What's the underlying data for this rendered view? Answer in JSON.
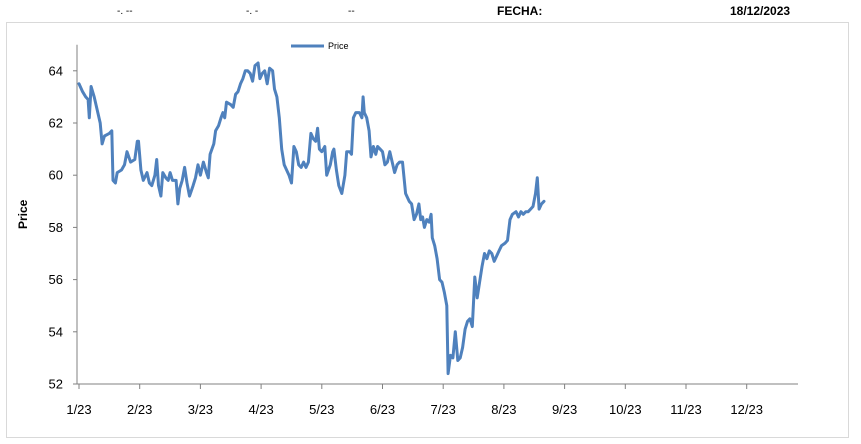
{
  "header": {
    "dash1": "-. --",
    "dash2": "-. -",
    "dash3": "--",
    "fecha_label": "FECHA:",
    "fecha_value": "18/12/2023"
  },
  "chart_data": {
    "type": "line",
    "ylabel": "Price",
    "ylim": [
      52,
      65
    ],
    "yticks": [
      52,
      54,
      56,
      58,
      60,
      62,
      64
    ],
    "xticks": [
      "1/23",
      "2/23",
      "3/23",
      "4/23",
      "5/23",
      "6/23",
      "7/23",
      "8/23",
      "9/23",
      "10/23",
      "11/23",
      "12/23"
    ],
    "legend": "top-center",
    "grid": false,
    "series_color": "#4f81bd",
    "series": [
      {
        "name": "Price",
        "points": [
          [
            0.0,
            63.5
          ],
          [
            0.06,
            63.2
          ],
          [
            0.11,
            63.0
          ],
          [
            0.15,
            62.9
          ],
          [
            0.17,
            62.2
          ],
          [
            0.2,
            63.4
          ],
          [
            0.25,
            63.0
          ],
          [
            0.3,
            62.5
          ],
          [
            0.35,
            62.0
          ],
          [
            0.38,
            61.2
          ],
          [
            0.42,
            61.5
          ],
          [
            0.5,
            61.6
          ],
          [
            0.54,
            61.7
          ],
          [
            0.56,
            59.8
          ],
          [
            0.6,
            59.7
          ],
          [
            0.63,
            60.1
          ],
          [
            0.7,
            60.2
          ],
          [
            0.75,
            60.4
          ],
          [
            0.79,
            60.9
          ],
          [
            0.85,
            60.5
          ],
          [
            0.92,
            60.6
          ],
          [
            0.96,
            61.3
          ],
          [
            0.98,
            61.3
          ],
          [
            1.02,
            60.2
          ],
          [
            1.06,
            59.8
          ],
          [
            1.12,
            60.1
          ],
          [
            1.16,
            59.7
          ],
          [
            1.2,
            59.6
          ],
          [
            1.25,
            60.0
          ],
          [
            1.28,
            60.6
          ],
          [
            1.31,
            59.6
          ],
          [
            1.35,
            59.2
          ],
          [
            1.38,
            60.1
          ],
          [
            1.43,
            59.9
          ],
          [
            1.47,
            59.8
          ],
          [
            1.5,
            60.1
          ],
          [
            1.54,
            59.8
          ],
          [
            1.6,
            59.8
          ],
          [
            1.63,
            58.9
          ],
          [
            1.66,
            59.5
          ],
          [
            1.7,
            59.8
          ],
          [
            1.74,
            60.3
          ],
          [
            1.78,
            59.7
          ],
          [
            1.82,
            59.2
          ],
          [
            1.88,
            59.6
          ],
          [
            1.92,
            59.9
          ],
          [
            1.96,
            60.4
          ],
          [
            2.0,
            60.0
          ],
          [
            2.05,
            60.5
          ],
          [
            2.1,
            60.1
          ],
          [
            2.13,
            59.9
          ],
          [
            2.16,
            60.8
          ],
          [
            2.22,
            61.2
          ],
          [
            2.25,
            61.7
          ],
          [
            2.3,
            61.9
          ],
          [
            2.34,
            62.2
          ],
          [
            2.37,
            62.4
          ],
          [
            2.4,
            62.2
          ],
          [
            2.43,
            62.8
          ],
          [
            2.5,
            62.7
          ],
          [
            2.54,
            62.6
          ],
          [
            2.58,
            63.1
          ],
          [
            2.62,
            63.2
          ],
          [
            2.66,
            63.5
          ],
          [
            2.7,
            63.7
          ],
          [
            2.74,
            64.0
          ],
          [
            2.78,
            64.0
          ],
          [
            2.82,
            63.9
          ],
          [
            2.86,
            63.6
          ],
          [
            2.9,
            64.2
          ],
          [
            2.95,
            64.3
          ],
          [
            2.98,
            63.7
          ],
          [
            3.02,
            63.9
          ],
          [
            3.06,
            64.0
          ],
          [
            3.1,
            63.5
          ],
          [
            3.14,
            64.1
          ],
          [
            3.19,
            64.0
          ],
          [
            3.22,
            63.3
          ],
          [
            3.26,
            63.0
          ],
          [
            3.3,
            62.2
          ],
          [
            3.34,
            61.0
          ],
          [
            3.38,
            60.4
          ],
          [
            3.42,
            60.2
          ],
          [
            3.46,
            60.0
          ],
          [
            3.5,
            59.7
          ],
          [
            3.54,
            61.1
          ],
          [
            3.58,
            60.9
          ],
          [
            3.62,
            60.4
          ],
          [
            3.66,
            60.3
          ],
          [
            3.7,
            60.5
          ],
          [
            3.74,
            60.3
          ],
          [
            3.78,
            60.5
          ],
          [
            3.82,
            61.6
          ],
          [
            3.86,
            61.4
          ],
          [
            3.9,
            61.3
          ],
          [
            3.93,
            61.8
          ],
          [
            3.96,
            61.0
          ],
          [
            4.0,
            60.9
          ],
          [
            4.05,
            61.1
          ],
          [
            4.08,
            60.0
          ],
          [
            4.14,
            60.4
          ],
          [
            4.18,
            60.9
          ],
          [
            4.2,
            61.0
          ],
          [
            4.24,
            60.2
          ],
          [
            4.28,
            59.6
          ],
          [
            4.33,
            59.3
          ],
          [
            4.38,
            60.0
          ],
          [
            4.41,
            60.9
          ],
          [
            4.46,
            60.9
          ],
          [
            4.49,
            60.8
          ],
          [
            4.52,
            62.2
          ],
          [
            4.56,
            62.4
          ],
          [
            4.62,
            62.4
          ],
          [
            4.66,
            62.2
          ],
          [
            4.68,
            63.0
          ],
          [
            4.7,
            62.4
          ],
          [
            4.74,
            62.2
          ],
          [
            4.78,
            61.7
          ],
          [
            4.81,
            60.7
          ],
          [
            4.85,
            61.1
          ],
          [
            4.89,
            60.8
          ],
          [
            4.92,
            61.1
          ],
          [
            4.96,
            61.0
          ],
          [
            5.0,
            60.9
          ],
          [
            5.04,
            60.4
          ],
          [
            5.08,
            60.5
          ],
          [
            5.12,
            60.9
          ],
          [
            5.16,
            60.5
          ],
          [
            5.2,
            60.1
          ],
          [
            5.24,
            60.4
          ],
          [
            5.28,
            60.5
          ],
          [
            5.33,
            60.5
          ],
          [
            5.38,
            59.3
          ],
          [
            5.44,
            59.0
          ],
          [
            5.48,
            58.9
          ],
          [
            5.52,
            58.3
          ],
          [
            5.56,
            58.5
          ],
          [
            5.6,
            58.9
          ],
          [
            5.63,
            58.3
          ],
          [
            5.66,
            58.4
          ],
          [
            5.69,
            58.0
          ],
          [
            5.73,
            58.3
          ],
          [
            5.77,
            58.2
          ],
          [
            5.8,
            58.5
          ],
          [
            5.82,
            57.6
          ],
          [
            5.86,
            57.3
          ],
          [
            5.9,
            56.8
          ],
          [
            5.94,
            56.0
          ],
          [
            5.98,
            55.9
          ],
          [
            6.02,
            55.5
          ],
          [
            6.06,
            55.0
          ],
          [
            6.08,
            52.4
          ],
          [
            6.12,
            53.1
          ],
          [
            6.16,
            53.0
          ],
          [
            6.2,
            54.0
          ],
          [
            6.24,
            52.9
          ],
          [
            6.28,
            53.0
          ],
          [
            6.32,
            53.4
          ],
          [
            6.36,
            54.1
          ],
          [
            6.4,
            54.4
          ],
          [
            6.44,
            54.5
          ],
          [
            6.48,
            54.2
          ],
          [
            6.52,
            56.1
          ],
          [
            6.56,
            55.3
          ],
          [
            6.6,
            55.9
          ],
          [
            6.64,
            56.5
          ],
          [
            6.68,
            57.0
          ],
          [
            6.72,
            56.8
          ],
          [
            6.76,
            57.1
          ],
          [
            6.8,
            57.0
          ],
          [
            6.84,
            56.7
          ],
          [
            6.88,
            56.9
          ],
          [
            6.92,
            57.1
          ],
          [
            6.96,
            57.3
          ],
          [
            7.02,
            57.4
          ],
          [
            7.06,
            57.5
          ],
          [
            7.1,
            58.3
          ],
          [
            7.14,
            58.5
          ],
          [
            7.2,
            58.6
          ],
          [
            7.24,
            58.4
          ],
          [
            7.28,
            58.6
          ],
          [
            7.32,
            58.5
          ],
          [
            7.36,
            58.6
          ],
          [
            7.4,
            58.6
          ],
          [
            7.44,
            58.7
          ],
          [
            7.48,
            58.8
          ],
          [
            7.52,
            59.3
          ],
          [
            7.55,
            59.9
          ],
          [
            7.58,
            58.7
          ],
          [
            7.62,
            58.9
          ],
          [
            7.66,
            59.0
          ]
        ]
      }
    ]
  }
}
